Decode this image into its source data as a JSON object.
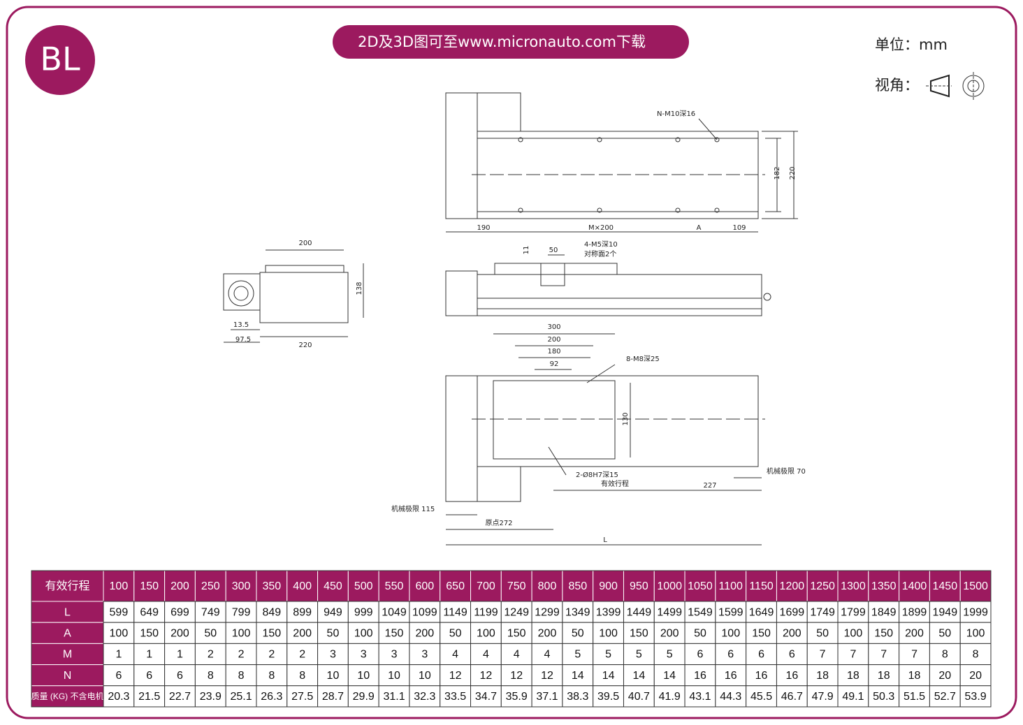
{
  "header": {
    "badge": "BL",
    "banner": "2D及3D图可至www.micronauto.com下载",
    "unit": "单位：mm",
    "view": "视角："
  },
  "drawing": {
    "labels": [
      "N-M10深16",
      "182",
      "220",
      "190",
      "M×200",
      "A",
      "109",
      "200",
      "138",
      "13.5",
      "97.5",
      "220",
      "11",
      "50",
      "4-M5深10",
      "对称面2个",
      "300",
      "200",
      "180",
      "92",
      "8-M8深25",
      "130",
      "2-Ø8H7深15",
      "有效行程",
      "227",
      "机械极限 70",
      "机械极限 115",
      "原点272",
      "L"
    ]
  },
  "table": {
    "rows": [
      [
        "有效行程",
        "100",
        "150",
        "200",
        "250",
        "300",
        "350",
        "400",
        "450",
        "500",
        "550",
        "600",
        "650",
        "700",
        "750",
        "800",
        "850",
        "900",
        "950",
        "1000",
        "1050",
        "1100",
        "1150",
        "1200",
        "1250",
        "1300",
        "1350",
        "1400",
        "1450",
        "1500"
      ],
      [
        "L",
        "599",
        "649",
        "699",
        "749",
        "799",
        "849",
        "899",
        "949",
        "999",
        "1049",
        "1099",
        "1149",
        "1199",
        "1249",
        "1299",
        "1349",
        "1399",
        "1449",
        "1499",
        "1549",
        "1599",
        "1649",
        "1699",
        "1749",
        "1799",
        "1849",
        "1899",
        "1949",
        "1999"
      ],
      [
        "A",
        "100",
        "150",
        "200",
        "50",
        "100",
        "150",
        "200",
        "50",
        "100",
        "150",
        "200",
        "50",
        "100",
        "150",
        "200",
        "50",
        "100",
        "150",
        "200",
        "50",
        "100",
        "150",
        "200",
        "50",
        "100",
        "150",
        "200",
        "50",
        "100"
      ],
      [
        "M",
        "1",
        "1",
        "1",
        "2",
        "2",
        "2",
        "2",
        "3",
        "3",
        "3",
        "3",
        "4",
        "4",
        "4",
        "4",
        "5",
        "5",
        "5",
        "5",
        "6",
        "6",
        "6",
        "6",
        "7",
        "7",
        "7",
        "7",
        "8",
        "8"
      ],
      [
        "N",
        "6",
        "6",
        "6",
        "8",
        "8",
        "8",
        "8",
        "10",
        "10",
        "10",
        "10",
        "12",
        "12",
        "12",
        "12",
        "14",
        "14",
        "14",
        "14",
        "16",
        "16",
        "16",
        "16",
        "18",
        "18",
        "18",
        "18",
        "20",
        "20"
      ],
      [
        "质量 (KG) 不含电机",
        "20.3",
        "21.5",
        "22.7",
        "23.9",
        "25.1",
        "26.3",
        "27.5",
        "28.7",
        "29.9",
        "31.1",
        "32.3",
        "33.5",
        "34.7",
        "35.9",
        "37.1",
        "38.3",
        "39.5",
        "40.7",
        "41.9",
        "43.1",
        "44.3",
        "45.5",
        "46.7",
        "47.9",
        "49.1",
        "50.3",
        "51.5",
        "52.7",
        "53.9"
      ]
    ]
  }
}
